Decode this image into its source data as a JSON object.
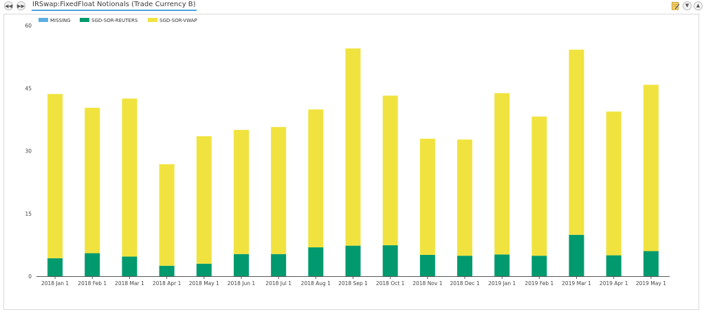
{
  "header": {
    "title": "IRSwap:FixedFloat Notionals (Trade Currency B)",
    "nav_prev_icon": "rewind-icon",
    "nav_next_icon": "fast-forward-icon"
  },
  "toolbar": {
    "icons": [
      "edit-note-icon",
      "collapse-down-icon",
      "expand-up-icon"
    ]
  },
  "colors": {
    "MISSING": "#5aaee3",
    "SGD-SOR-REUTERS": "#009a6e",
    "SGD-SOR-VWAP": "#f0e33f",
    "axis": "#555555",
    "tick_text": "#444444"
  },
  "chart_data": {
    "type": "bar",
    "stacked": true,
    "title": "",
    "xlabel": "",
    "ylabel": "",
    "ylim": [
      0,
      60
    ],
    "yticks": [
      0,
      15,
      30,
      45,
      60
    ],
    "grid": false,
    "legend_position": "top-left",
    "categories": [
      "2018 Jan 1",
      "2018 Feb 1",
      "2018 Mar 1",
      "2018 Apr 1",
      "2018 May 1",
      "2018 Jun 1",
      "2018 Jul 1",
      "2018 Aug 1",
      "2018 Sep 1",
      "2018 Oct 1",
      "2018 Nov 1",
      "2018 Dec 1",
      "2019 Jan 1",
      "2019 Feb 1",
      "2019 Mar 1",
      "2019 Apr 1",
      "2019 May 1"
    ],
    "series": [
      {
        "name": "MISSING",
        "values": [
          0,
          0,
          0,
          0,
          0,
          0,
          0,
          0,
          0,
          0,
          0,
          0,
          0,
          0,
          0,
          0,
          0
        ]
      },
      {
        "name": "SGD-SOR-REUTERS",
        "values": [
          4.3,
          5.5,
          4.7,
          2.5,
          3.0,
          5.3,
          5.3,
          6.9,
          7.3,
          7.4,
          5.1,
          4.9,
          5.2,
          4.9,
          9.9,
          5.0,
          6.0
        ]
      },
      {
        "name": "SGD-SOR-VWAP",
        "values": [
          39.3,
          34.8,
          37.8,
          24.3,
          30.5,
          29.7,
          30.4,
          33.0,
          47.2,
          35.8,
          27.8,
          27.8,
          38.6,
          33.3,
          44.3,
          34.4,
          39.8
        ]
      }
    ]
  }
}
